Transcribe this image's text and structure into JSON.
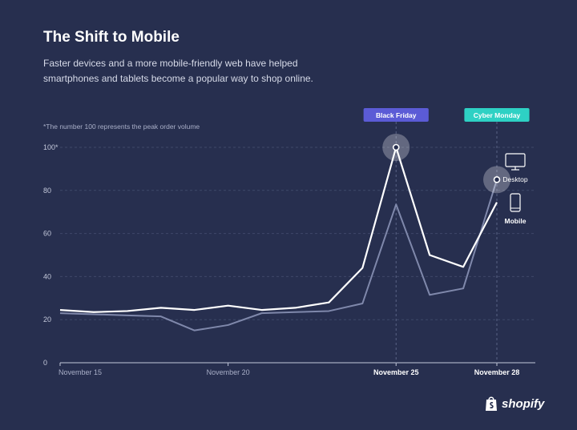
{
  "header": {
    "title": "The Shift to Mobile",
    "subtitle": "Faster devices and a more mobile-friendly web have helped smartphones and tablets become a popular way to shop online."
  },
  "chart_data": {
    "type": "line",
    "note": "*The number 100 represents the peak order volume",
    "x": [
      15,
      16,
      17,
      18,
      19,
      20,
      21,
      22,
      23,
      24,
      25,
      26,
      27,
      28
    ],
    "x_tick_labels": [
      {
        "x": 15,
        "label": "November 15",
        "bold": false
      },
      {
        "x": 20,
        "label": "November 20",
        "bold": false
      },
      {
        "x": 25,
        "label": "November 25",
        "bold": true
      },
      {
        "x": 28,
        "label": "November 28",
        "bold": true
      }
    ],
    "y_ticks": [
      {
        "value": 0,
        "label": "0"
      },
      {
        "value": 20,
        "label": "20"
      },
      {
        "value": 40,
        "label": "40"
      },
      {
        "value": 60,
        "label": "60"
      },
      {
        "value": 80,
        "label": "80"
      },
      {
        "value": 100,
        "label": "100*"
      }
    ],
    "ylim": [
      0,
      100
    ],
    "grid": true,
    "series": [
      {
        "name": "Desktop",
        "color": "#ffffff",
        "icon": "desktop-icon",
        "values": [
          24.5,
          23.5,
          24,
          25.5,
          24.5,
          26.5,
          24.5,
          25.5,
          28,
          44,
          100,
          50,
          44.5,
          74.5
        ]
      },
      {
        "name": "Mobile",
        "color": "#7f88ab",
        "icon": "mobile-icon",
        "values": [
          23,
          22.5,
          22,
          21.5,
          15,
          17.5,
          23,
          23.5,
          24,
          27.5,
          73.5,
          31.5,
          34.5,
          85
        ]
      }
    ],
    "annotations": [
      {
        "label": "Black Friday",
        "x": 25,
        "y": 100,
        "color": "#5b5bd6"
      },
      {
        "label": "Cyber Monday",
        "x": 28,
        "y": 85,
        "color": "#2ed1c4"
      }
    ]
  },
  "logo": {
    "text": "shopify",
    "icon": "shopify-bag-icon"
  }
}
